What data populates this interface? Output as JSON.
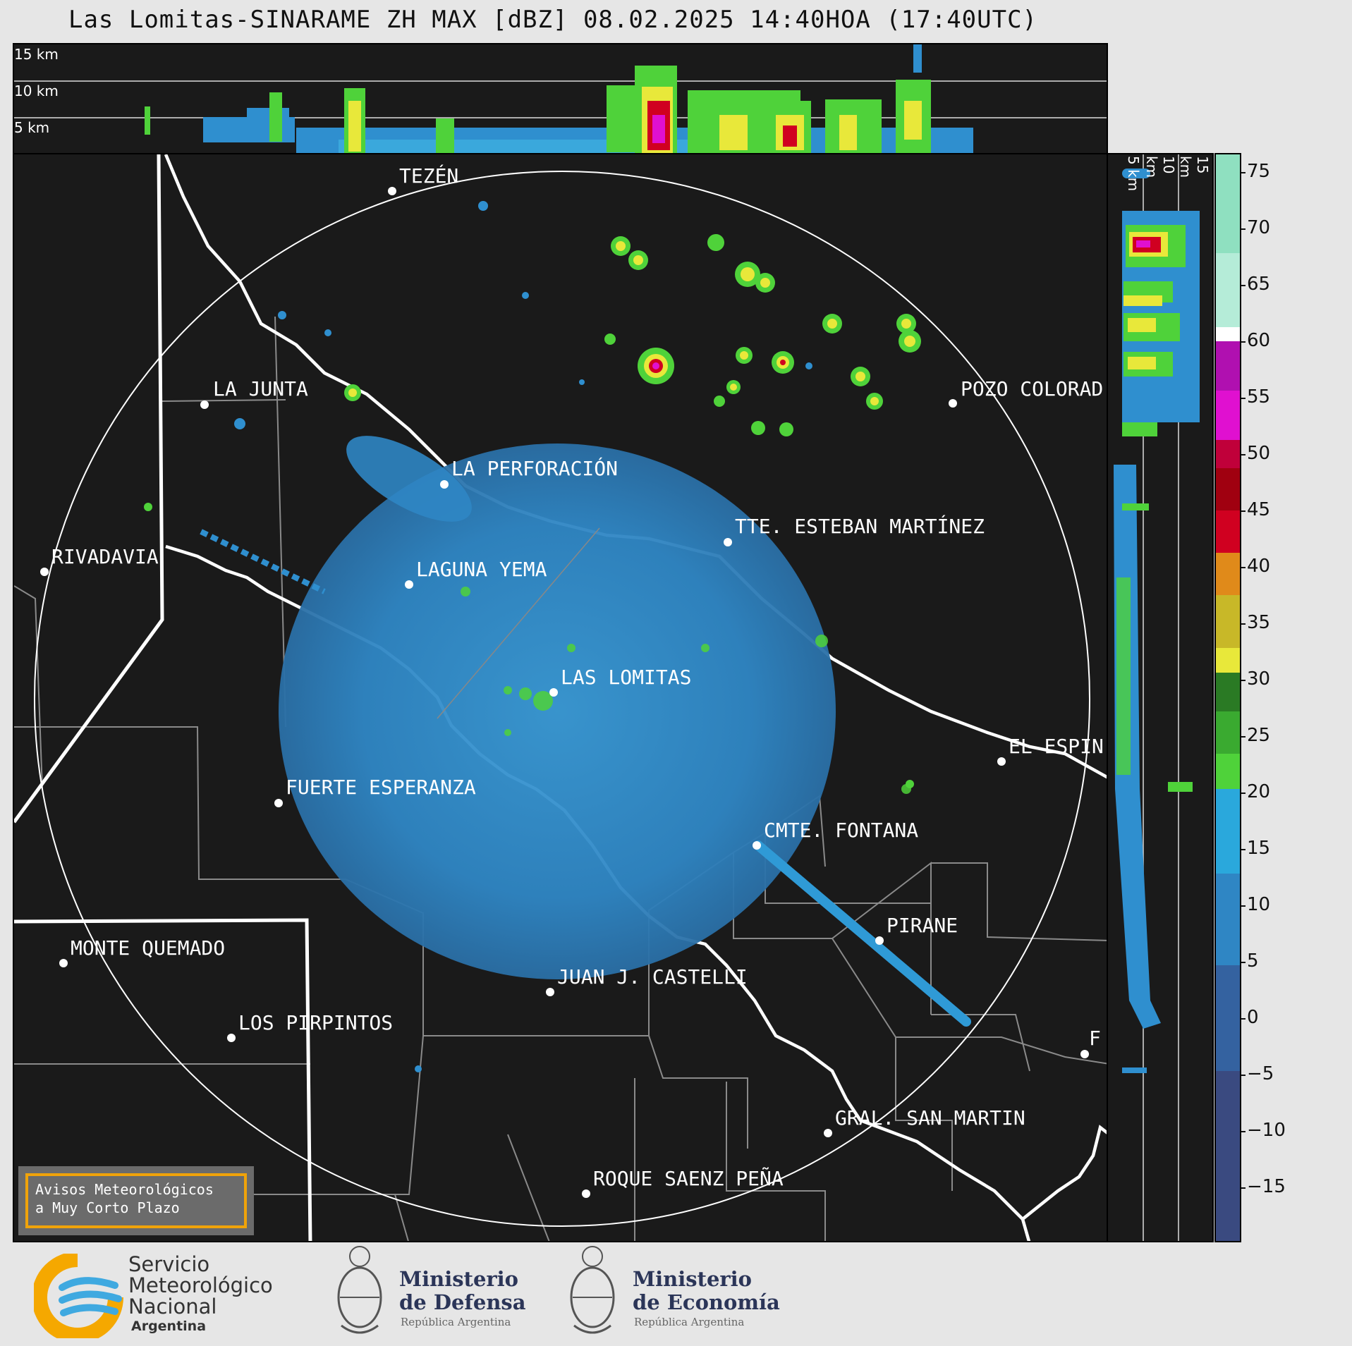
{
  "title": "Las Lomitas-SINARAME ZH MAX [dBZ] 08.02.2025 14:40HOA (17:40UTC)",
  "top_profile": {
    "km_labels": [
      "15 km",
      "10 km",
      "5 km"
    ]
  },
  "side_profile": {
    "km_labels": [
      "5 km",
      "10 km",
      "15 km"
    ]
  },
  "colorbar": {
    "ticks": [
      "75",
      "70",
      "65",
      "60",
      "55",
      "50",
      "45",
      "40",
      "35",
      "30",
      "25",
      "20",
      "15",
      "10",
      "5",
      "0",
      "−5",
      "−10",
      "−15"
    ],
    "range": [
      -20,
      77
    ]
  },
  "cities": [
    {
      "name": "TEZÉN"
    },
    {
      "name": "LA JUNTA"
    },
    {
      "name": "POZO COLORAD"
    },
    {
      "name": "LA PERFORACIÓN"
    },
    {
      "name": "RIVADAVIA"
    },
    {
      "name": "TTE. ESTEBAN MARTÍNEZ"
    },
    {
      "name": "LAGUNA YEMA"
    },
    {
      "name": "LAS LOMITAS"
    },
    {
      "name": "EL ESPIN"
    },
    {
      "name": "FUERTE ESPERANZA"
    },
    {
      "name": "CMTE. FONTANA"
    },
    {
      "name": "PIRANE"
    },
    {
      "name": "MONTE QUEMADO"
    },
    {
      "name": "JUAN J. CASTELLI"
    },
    {
      "name": "LOS PIRPINTOS"
    },
    {
      "name": "F"
    },
    {
      "name": "GRAL. SAN MARTIN"
    },
    {
      "name": "ROQUE SAENZ PEÑA"
    }
  ],
  "warning_box": {
    "line1": "Avisos Meteorológicos",
    "line2": "a Muy Corto Plazo"
  },
  "logos": {
    "smn": {
      "line1": "Servicio",
      "line2": "Meteorológico",
      "line3": "Nacional",
      "line4": "Argentina"
    },
    "defensa": {
      "line1": "Ministerio",
      "line2": "de Defensa",
      "line3": "República Argentina"
    },
    "economia": {
      "line1": "Ministerio",
      "line2": "de Economía",
      "line3": "República Argentina"
    }
  },
  "colors": {
    "background": "#1a1a1a",
    "echo_blue": "#2f8fcf",
    "echo_green": "#4fd23a",
    "echo_yellow": "#e8e83a",
    "echo_red": "#d00020",
    "echo_magenta": "#e010d0",
    "warning_border": "#f0a30a"
  }
}
